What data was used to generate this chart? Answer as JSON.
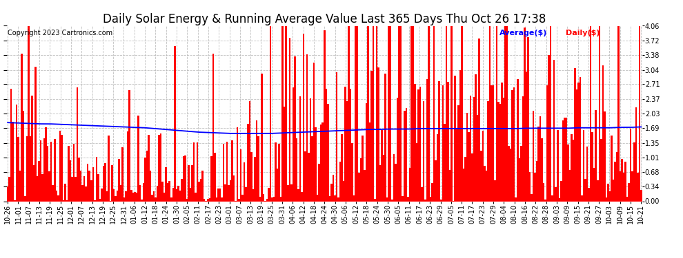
{
  "title": "Daily Solar Energy & Running Average Value Last 365 Days Thu Oct 26 17:38",
  "copyright": "Copyright 2023 Cartronics.com",
  "legend_avg": "Average($)",
  "legend_daily": "Daily($)",
  "ylabel_right_ticks": [
    0.0,
    0.34,
    0.68,
    1.01,
    1.35,
    1.69,
    2.03,
    2.37,
    2.71,
    3.04,
    3.38,
    3.72,
    4.06
  ],
  "bar_color": "#ff0000",
  "avg_line_color": "#0000ff",
  "background_color": "#ffffff",
  "plot_bg_color": "#ffffff",
  "grid_color": "#b0b0b0",
  "title_fontsize": 12,
  "copyright_fontsize": 7,
  "tick_fontsize": 7,
  "ylim_max": 4.06,
  "x_labels": [
    "10-26",
    "11-01",
    "11-07",
    "11-13",
    "11-19",
    "11-25",
    "12-01",
    "12-07",
    "12-13",
    "12-19",
    "12-25",
    "12-31",
    "01-06",
    "01-12",
    "01-18",
    "01-24",
    "01-30",
    "02-05",
    "02-11",
    "02-17",
    "02-23",
    "03-01",
    "03-07",
    "03-13",
    "03-19",
    "03-25",
    "03-31",
    "04-06",
    "04-12",
    "04-18",
    "04-24",
    "04-30",
    "05-06",
    "05-12",
    "05-18",
    "05-24",
    "05-30",
    "06-05",
    "06-11",
    "06-17",
    "06-23",
    "06-29",
    "07-05",
    "07-11",
    "07-17",
    "07-23",
    "07-29",
    "08-04",
    "08-10",
    "08-16",
    "08-22",
    "08-28",
    "09-03",
    "09-09",
    "09-15",
    "09-21",
    "09-27",
    "10-03",
    "10-09",
    "10-15",
    "10-21"
  ],
  "avg_line_values": [
    1.82,
    1.81,
    1.8,
    1.79,
    1.79,
    1.78,
    1.77,
    1.76,
    1.75,
    1.74,
    1.73,
    1.72,
    1.71,
    1.7,
    1.68,
    1.66,
    1.64,
    1.62,
    1.6,
    1.59,
    1.58,
    1.57,
    1.57,
    1.57,
    1.57,
    1.57,
    1.58,
    1.59,
    1.6,
    1.61,
    1.62,
    1.63,
    1.64,
    1.65,
    1.66,
    1.66,
    1.67,
    1.67,
    1.67,
    1.68,
    1.68,
    1.68,
    1.68,
    1.68,
    1.68,
    1.68,
    1.68,
    1.68,
    1.68,
    1.69,
    1.69,
    1.69,
    1.69,
    1.69,
    1.7,
    1.7,
    1.7,
    1.7,
    1.71,
    1.71,
    1.72
  ]
}
